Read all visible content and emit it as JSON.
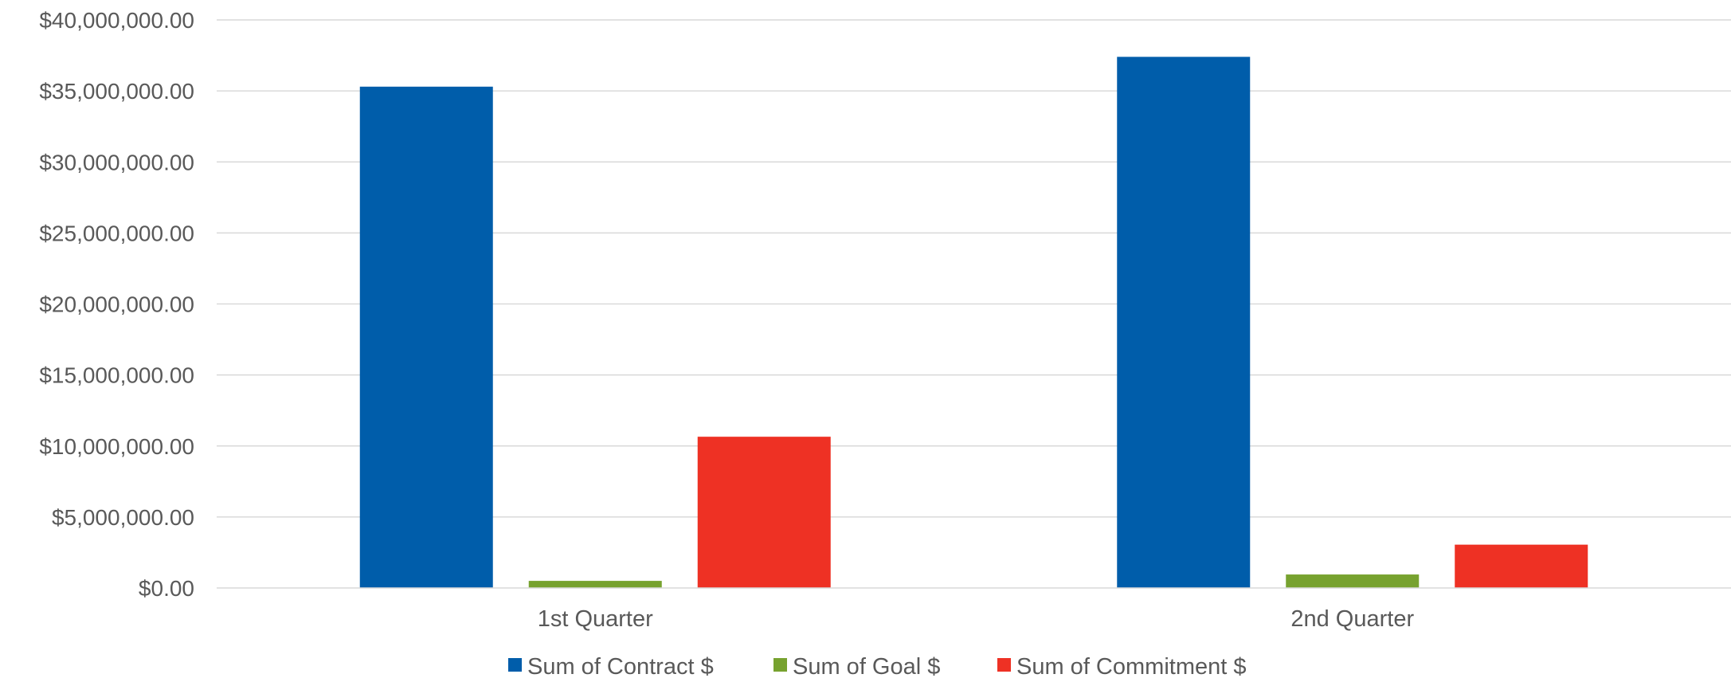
{
  "chart_data": {
    "type": "bar",
    "title": "",
    "xlabel": "",
    "ylabel": "",
    "categories": [
      "1st Quarter",
      "2nd Quarter"
    ],
    "series": [
      {
        "name": "Sum of Contract $",
        "color": "#005daa",
        "values": [
          35300000,
          37400000
        ]
      },
      {
        "name": "Sum of Goal $",
        "color": "#77a22f",
        "values": [
          500000,
          950000
        ]
      },
      {
        "name": "Sum of Commitment $",
        "color": "#ee3124",
        "values": [
          10650000,
          3050000
        ]
      }
    ],
    "ylim": [
      0,
      40000000
    ],
    "y_ticks": [
      "$0.00",
      "$5,000,000.00",
      "$10,000,000.00",
      "$15,000,000.00",
      "$20,000,000.00",
      "$25,000,000.00",
      "$30,000,000.00",
      "$35,000,000.00",
      "$40,000,000.00"
    ],
    "grid": true,
    "legend_position": "bottom"
  }
}
